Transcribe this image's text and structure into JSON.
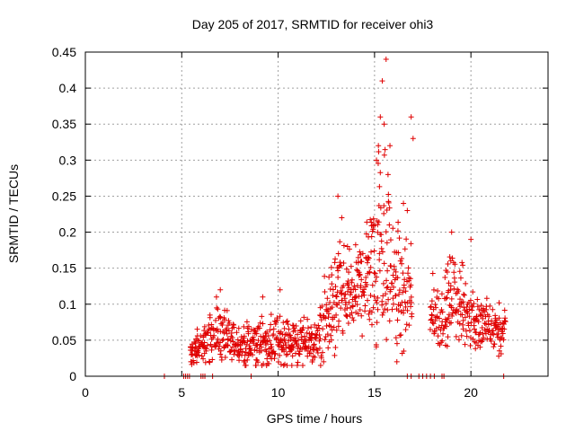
{
  "chart_data": {
    "type": "scatter",
    "title": "Day 205 of 2017, SRMTID for receiver ohi3",
    "xlabel": "GPS time / hours",
    "ylabel": "SRMTID / TECUs",
    "xlim": [
      0,
      24
    ],
    "ylim": [
      0,
      0.45
    ],
    "xticks": [
      0,
      5,
      10,
      15,
      20
    ],
    "xtick_labels": [
      "0",
      "5",
      "10",
      "15",
      "20"
    ],
    "yticks": [
      0,
      0.05,
      0.1,
      0.15,
      0.2,
      0.25,
      0.3,
      0.35,
      0.4,
      0.45
    ],
    "ytick_labels": [
      "0",
      "0.05",
      "0.1",
      "0.15",
      "0.2",
      "0.25",
      "0.3",
      "0.35",
      "0.4",
      "0.45"
    ],
    "grid": true,
    "marker": "+",
    "color": "#e00000",
    "series": [
      {
        "name": "SRMTID",
        "profile": [
          [
            5.0,
            0.0,
            0.0
          ],
          [
            5.4,
            0.03,
            0.02
          ],
          [
            5.7,
            0.035,
            0.025
          ],
          [
            6.0,
            0.04,
            0.02
          ],
          [
            6.5,
            0.055,
            0.03
          ],
          [
            7.0,
            0.06,
            0.035
          ],
          [
            7.5,
            0.045,
            0.025
          ],
          [
            8.0,
            0.045,
            0.025
          ],
          [
            8.5,
            0.04,
            0.025
          ],
          [
            9.0,
            0.045,
            0.03
          ],
          [
            9.5,
            0.045,
            0.03
          ],
          [
            10.0,
            0.05,
            0.03
          ],
          [
            10.5,
            0.05,
            0.03
          ],
          [
            11.0,
            0.045,
            0.03
          ],
          [
            11.5,
            0.045,
            0.03
          ],
          [
            12.0,
            0.045,
            0.03
          ],
          [
            12.5,
            0.08,
            0.05
          ],
          [
            13.0,
            0.1,
            0.07
          ],
          [
            13.5,
            0.11,
            0.06
          ],
          [
            14.0,
            0.12,
            0.05
          ],
          [
            14.5,
            0.13,
            0.06
          ],
          [
            15.0,
            0.17,
            0.1
          ],
          [
            15.3,
            0.2,
            0.15
          ],
          [
            15.6,
            0.17,
            0.12
          ],
          [
            16.0,
            0.13,
            0.09
          ],
          [
            16.5,
            0.1,
            0.07
          ],
          [
            16.9,
            0.1,
            0.06
          ],
          [
            17.1,
            0.0,
            0.0
          ],
          [
            18.0,
            0.09,
            0.04
          ],
          [
            18.5,
            0.08,
            0.04
          ],
          [
            19.0,
            0.11,
            0.05
          ],
          [
            19.5,
            0.1,
            0.05
          ],
          [
            20.0,
            0.08,
            0.04
          ],
          [
            20.5,
            0.07,
            0.035
          ],
          [
            21.0,
            0.065,
            0.035
          ],
          [
            21.5,
            0.06,
            0.03
          ],
          [
            21.8,
            0.06,
            0.03
          ]
        ],
        "outliers": [
          [
            15.4,
            0.41
          ],
          [
            15.6,
            0.44
          ],
          [
            15.3,
            0.36
          ],
          [
            15.5,
            0.35
          ],
          [
            15.2,
            0.32
          ],
          [
            15.8,
            0.32
          ],
          [
            15.7,
            0.28
          ],
          [
            15.1,
            0.3
          ],
          [
            16.9,
            0.36
          ],
          [
            17.0,
            0.33
          ],
          [
            13.1,
            0.25
          ],
          [
            13.3,
            0.22
          ],
          [
            16.5,
            0.24
          ],
          [
            16.7,
            0.23
          ],
          [
            19.0,
            0.2
          ],
          [
            20.0,
            0.19
          ],
          [
            9.2,
            0.11
          ],
          [
            10.1,
            0.12
          ],
          [
            7.0,
            0.12
          ],
          [
            6.8,
            0.11
          ]
        ],
        "zero_points": [
          4.1,
          5.1,
          5.2,
          5.3,
          5.4,
          6.0,
          6.1,
          6.2,
          6.6,
          8.6,
          16.7,
          16.9,
          17.3,
          17.5,
          17.7,
          17.9,
          18.1,
          18.5,
          18.6,
          21.7
        ]
      }
    ]
  }
}
